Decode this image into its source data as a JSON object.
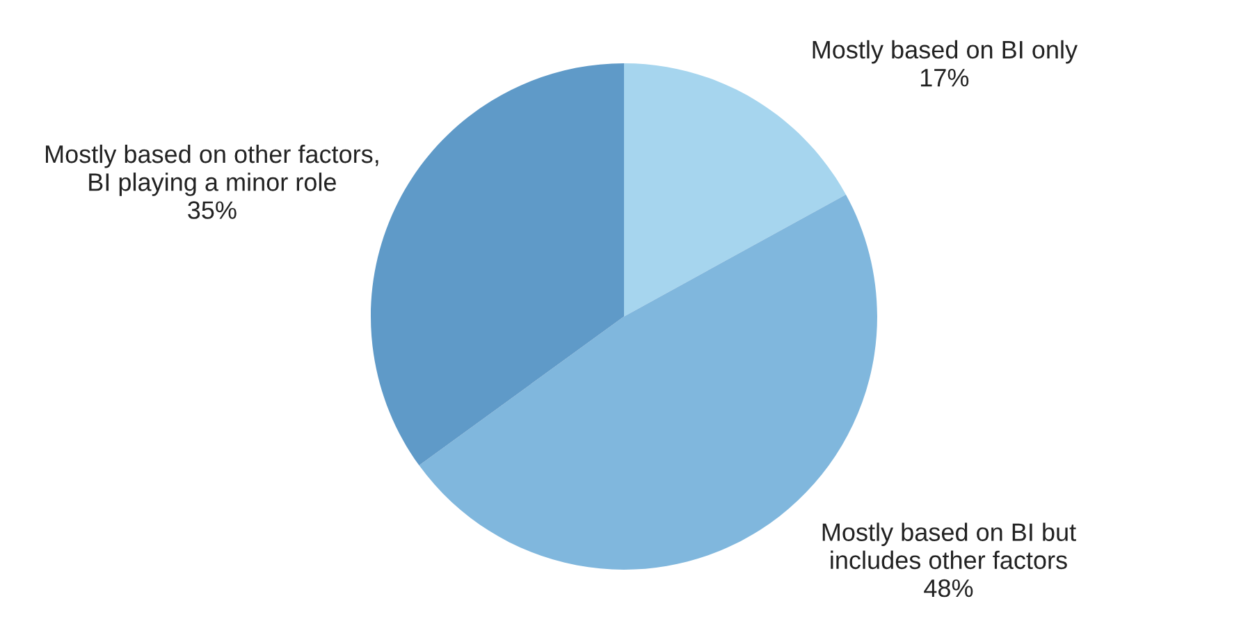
{
  "chart_data": {
    "type": "pie",
    "categories": [
      "Mostly based on BI only",
      "Mostly based on BI but\nincludes other factors",
      "Mostly based on other factors,\nBI playing a minor role"
    ],
    "values": [
      17,
      48,
      35
    ],
    "value_labels": [
      "17%",
      "48%",
      "35%"
    ],
    "colors": [
      "#a6d5ee",
      "#80b7dd",
      "#5f9ac8"
    ],
    "legend": false
  }
}
